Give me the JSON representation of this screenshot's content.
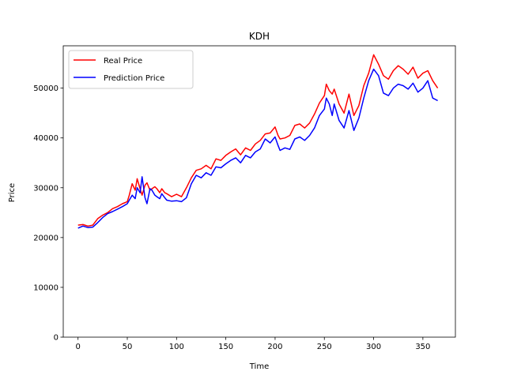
{
  "chart_data": {
    "type": "line",
    "title": "KDH",
    "xlabel": "Time",
    "ylabel": "Price",
    "xlim": [
      -15,
      383
    ],
    "ylim": [
      0,
      58500
    ],
    "xticks": [
      0,
      50,
      100,
      150,
      200,
      250,
      300,
      350
    ],
    "yticks": [
      0,
      10000,
      20000,
      30000,
      40000,
      50000
    ],
    "legend_position": "upper left",
    "grid": false,
    "series": [
      {
        "name": "Real Price",
        "color": "#ff0000",
        "x": [
          0,
          5,
          10,
          15,
          20,
          25,
          30,
          35,
          40,
          45,
          50,
          52,
          55,
          58,
          60,
          63,
          65,
          68,
          70,
          73,
          75,
          78,
          80,
          83,
          85,
          88,
          90,
          95,
          100,
          105,
          110,
          115,
          120,
          125,
          130,
          135,
          140,
          145,
          150,
          155,
          160,
          165,
          170,
          175,
          180,
          185,
          190,
          195,
          200,
          203,
          205,
          210,
          215,
          220,
          225,
          230,
          235,
          240,
          245,
          250,
          252,
          255,
          258,
          260,
          265,
          270,
          275,
          280,
          285,
          290,
          295,
          300,
          305,
          310,
          315,
          320,
          325,
          330,
          335,
          340,
          345,
          350,
          355,
          360,
          365
        ],
        "y": [
          22500,
          22600,
          22300,
          22500,
          23800,
          24500,
          25000,
          25800,
          26200,
          26800,
          27200,
          28500,
          30800,
          29500,
          31800,
          29800,
          28500,
          30500,
          31000,
          29500,
          29800,
          30200,
          29800,
          29000,
          29800,
          29000,
          28800,
          28200,
          28700,
          28200,
          30000,
          32000,
          33500,
          33800,
          34500,
          33800,
          35800,
          35500,
          36500,
          37200,
          37800,
          36600,
          38000,
          37500,
          38800,
          39500,
          40800,
          41000,
          42200,
          40500,
          39800,
          40000,
          40500,
          42500,
          42800,
          42000,
          43000,
          44800,
          47000,
          48500,
          50800,
          49500,
          48800,
          49800,
          46800,
          45000,
          48800,
          44500,
          46500,
          50500,
          53000,
          56700,
          54800,
          52500,
          51800,
          53500,
          54500,
          53800,
          52800,
          54200,
          52000,
          53000,
          53500,
          51500,
          50000
        ]
      },
      {
        "name": "Prediction Price",
        "color": "#0000ff",
        "x": [
          0,
          5,
          10,
          15,
          20,
          25,
          30,
          35,
          40,
          45,
          50,
          52,
          55,
          58,
          60,
          63,
          65,
          68,
          70,
          73,
          75,
          78,
          80,
          83,
          85,
          88,
          90,
          95,
          100,
          105,
          110,
          115,
          120,
          125,
          130,
          135,
          140,
          145,
          150,
          155,
          160,
          165,
          170,
          175,
          180,
          185,
          190,
          195,
          200,
          203,
          205,
          210,
          215,
          220,
          225,
          230,
          235,
          240,
          245,
          250,
          252,
          255,
          258,
          260,
          265,
          270,
          275,
          280,
          285,
          290,
          295,
          300,
          305,
          310,
          315,
          320,
          325,
          330,
          335,
          340,
          345,
          350,
          355,
          360,
          365
        ],
        "y": [
          21900,
          22300,
          22000,
          22100,
          23000,
          24000,
          24800,
          25200,
          25700,
          26200,
          26800,
          27500,
          28500,
          27800,
          30000,
          29000,
          32200,
          28000,
          26800,
          29800,
          29500,
          28500,
          28200,
          27800,
          28800,
          28000,
          27500,
          27300,
          27400,
          27200,
          28000,
          30800,
          32500,
          32000,
          33000,
          32500,
          34200,
          34000,
          34800,
          35500,
          36000,
          35000,
          36500,
          36000,
          37200,
          37800,
          39800,
          39000,
          40200,
          38500,
          37500,
          38000,
          37700,
          39800,
          40200,
          39500,
          40500,
          42000,
          44500,
          45800,
          48000,
          46800,
          44500,
          46800,
          43500,
          42000,
          45500,
          41500,
          44000,
          48000,
          51500,
          53800,
          52500,
          49000,
          48500,
          50000,
          50800,
          50500,
          49800,
          51000,
          49200,
          50000,
          51500,
          48000,
          47500
        ]
      }
    ]
  }
}
